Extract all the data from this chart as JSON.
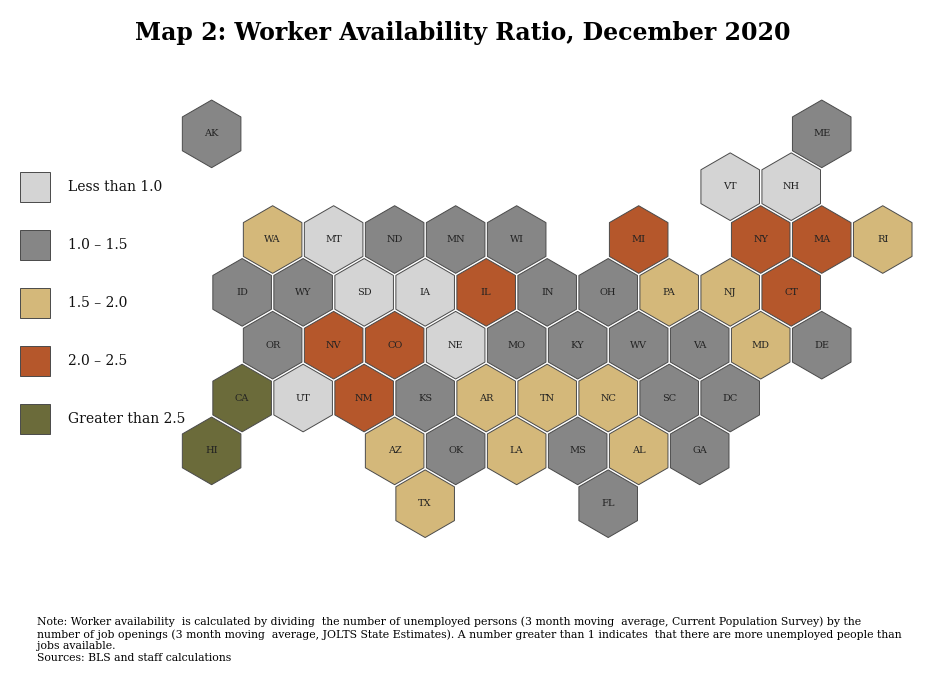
{
  "title": "Map 2: Worker Availability Ratio, December 2020",
  "colors": {
    "less_than_1": "#d4d4d4",
    "1_to_1.5": "#868686",
    "1.5_to_2": "#d4b87a",
    "2_to_2.5": "#b5572b",
    "greater_2.5": "#6b6b3a"
  },
  "legend_labels": [
    "Less than 1.0",
    "1.0 – 1.5",
    "1.5 – 2.0",
    "2.0 – 2.5",
    "Greater than 2.5"
  ],
  "note": "Note: Worker availability  is calculated by dividing  the number of unemployed persons (3 month moving  average, Current Population Survey) by the\nnumber of job openings (3 month moving  average, JOLTS State Estimates). A number greater than 1 indicates  that there are more unemployed people than\njobs available.\nSources: BLS and staff calculations",
  "states": [
    {
      "abbr": "AK",
      "col": 2,
      "row": 2,
      "category": "1_to_1.5"
    },
    {
      "abbr": "ME",
      "col": 12,
      "row": 2,
      "category": "1_to_1.5"
    },
    {
      "abbr": "VT",
      "col": 11,
      "row": 3,
      "category": "less_than_1"
    },
    {
      "abbr": "NH",
      "col": 12,
      "row": 3,
      "category": "less_than_1"
    },
    {
      "abbr": "WA",
      "col": 3,
      "row": 4,
      "category": "1.5_to_2"
    },
    {
      "abbr": "MT",
      "col": 4,
      "row": 4,
      "category": "less_than_1"
    },
    {
      "abbr": "ND",
      "col": 5,
      "row": 4,
      "category": "1_to_1.5"
    },
    {
      "abbr": "MN",
      "col": 6,
      "row": 4,
      "category": "1_to_1.5"
    },
    {
      "abbr": "WI",
      "col": 7,
      "row": 4,
      "category": "1_to_1.5"
    },
    {
      "abbr": "MI",
      "col": 9,
      "row": 4,
      "category": "2_to_2.5"
    },
    {
      "abbr": "NY",
      "col": 11,
      "row": 4,
      "category": "2_to_2.5"
    },
    {
      "abbr": "MA",
      "col": 12,
      "row": 4,
      "category": "2_to_2.5"
    },
    {
      "abbr": "RI",
      "col": 13,
      "row": 4,
      "category": "1.5_to_2"
    },
    {
      "abbr": "ID",
      "col": 3,
      "row": 5,
      "category": "1_to_1.5"
    },
    {
      "abbr": "WY",
      "col": 4,
      "row": 5,
      "category": "1_to_1.5"
    },
    {
      "abbr": "SD",
      "col": 5,
      "row": 5,
      "category": "less_than_1"
    },
    {
      "abbr": "IA",
      "col": 6,
      "row": 5,
      "category": "less_than_1"
    },
    {
      "abbr": "IL",
      "col": 7,
      "row": 5,
      "category": "2_to_2.5"
    },
    {
      "abbr": "IN",
      "col": 8,
      "row": 5,
      "category": "1_to_1.5"
    },
    {
      "abbr": "OH",
      "col": 9,
      "row": 5,
      "category": "1_to_1.5"
    },
    {
      "abbr": "PA",
      "col": 10,
      "row": 5,
      "category": "1.5_to_2"
    },
    {
      "abbr": "NJ",
      "col": 11,
      "row": 5,
      "category": "1.5_to_2"
    },
    {
      "abbr": "CT",
      "col": 12,
      "row": 5,
      "category": "2_to_2.5"
    },
    {
      "abbr": "OR",
      "col": 3,
      "row": 6,
      "category": "1_to_1.5"
    },
    {
      "abbr": "NV",
      "col": 4,
      "row": 6,
      "category": "2_to_2.5"
    },
    {
      "abbr": "CO",
      "col": 5,
      "row": 6,
      "category": "2_to_2.5"
    },
    {
      "abbr": "NE",
      "col": 6,
      "row": 6,
      "category": "less_than_1"
    },
    {
      "abbr": "MO",
      "col": 7,
      "row": 6,
      "category": "1_to_1.5"
    },
    {
      "abbr": "KY",
      "col": 8,
      "row": 6,
      "category": "1_to_1.5"
    },
    {
      "abbr": "WV",
      "col": 9,
      "row": 6,
      "category": "1_to_1.5"
    },
    {
      "abbr": "VA",
      "col": 10,
      "row": 6,
      "category": "1_to_1.5"
    },
    {
      "abbr": "MD",
      "col": 11,
      "row": 6,
      "category": "1.5_to_2"
    },
    {
      "abbr": "DE",
      "col": 12,
      "row": 6,
      "category": "1_to_1.5"
    },
    {
      "abbr": "CA",
      "col": 3,
      "row": 7,
      "category": "greater_2.5"
    },
    {
      "abbr": "UT",
      "col": 4,
      "row": 7,
      "category": "less_than_1"
    },
    {
      "abbr": "NM",
      "col": 5,
      "row": 7,
      "category": "2_to_2.5"
    },
    {
      "abbr": "KS",
      "col": 6,
      "row": 7,
      "category": "1_to_1.5"
    },
    {
      "abbr": "AR",
      "col": 7,
      "row": 7,
      "category": "1.5_to_2"
    },
    {
      "abbr": "TN",
      "col": 8,
      "row": 7,
      "category": "1.5_to_2"
    },
    {
      "abbr": "NC",
      "col": 9,
      "row": 7,
      "category": "1.5_to_2"
    },
    {
      "abbr": "SC",
      "col": 10,
      "row": 7,
      "category": "1_to_1.5"
    },
    {
      "abbr": "DC",
      "col": 11,
      "row": 7,
      "category": "1_to_1.5"
    },
    {
      "abbr": "AZ",
      "col": 5,
      "row": 8,
      "category": "1.5_to_2"
    },
    {
      "abbr": "OK",
      "col": 6,
      "row": 8,
      "category": "1_to_1.5"
    },
    {
      "abbr": "LA",
      "col": 7,
      "row": 8,
      "category": "1.5_to_2"
    },
    {
      "abbr": "MS",
      "col": 8,
      "row": 8,
      "category": "1_to_1.5"
    },
    {
      "abbr": "AL",
      "col": 9,
      "row": 8,
      "category": "1.5_to_2"
    },
    {
      "abbr": "GA",
      "col": 10,
      "row": 8,
      "category": "1_to_1.5"
    },
    {
      "abbr": "TX",
      "col": 6,
      "row": 9,
      "category": "1.5_to_2"
    },
    {
      "abbr": "FL",
      "col": 9,
      "row": 9,
      "category": "1_to_1.5"
    },
    {
      "abbr": "HI",
      "col": 2,
      "row": 8,
      "category": "greater_2.5"
    }
  ]
}
